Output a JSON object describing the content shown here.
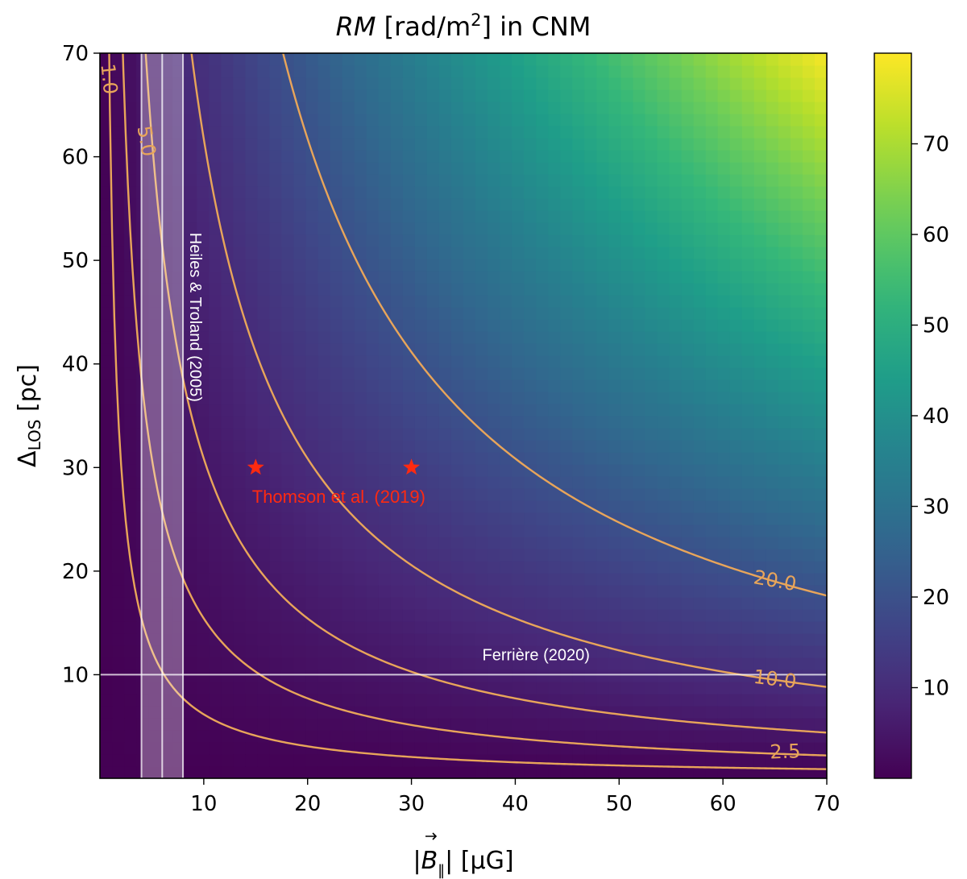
{
  "chart_data": {
    "type": "heatmap",
    "title_parts": {
      "rm": "RM",
      "unit_pre": " [rad/m",
      "sup": "2",
      "unit_post": "] in CNM"
    },
    "xlabel_parts": {
      "b": "B",
      "sub": "‖",
      "unit": "| [μG]"
    },
    "ylabel_parts": {
      "delta": "Δ",
      "sub": "LOS",
      "unit": " [pc]"
    },
    "xlim": [
      0,
      70
    ],
    "ylim": [
      0,
      70
    ],
    "xticks": [
      10,
      20,
      30,
      40,
      50,
      60,
      70
    ],
    "yticks": [
      10,
      20,
      30,
      40,
      50,
      60,
      70
    ],
    "relation": "RM = 0.0162 * B * Delta",
    "colormap": "viridis",
    "colorbar": {
      "vmin": 0,
      "vmax": 80,
      "ticks": [
        10,
        20,
        30,
        40,
        50,
        60,
        70
      ]
    },
    "contour_color": "#e8a55a",
    "contour_levels": [
      1.0,
      2.5,
      5.0,
      10.0,
      20.0
    ],
    "contour_labels": [
      {
        "text": "2.5",
        "level": 2.5,
        "x": 66,
        "y": 2.5,
        "rotate": -2
      },
      {
        "text": "10.0",
        "level": 10.0,
        "x": 65,
        "y": 9.5,
        "rotate": 7
      },
      {
        "text": "20.0",
        "level": 20.0,
        "x": 65,
        "y": 19.0,
        "rotate": 10
      },
      {
        "text": "5.0",
        "level": 5.0,
        "x": 4.4,
        "y": 61.5,
        "rotate": 80
      },
      {
        "text": "1.0",
        "level": 1.0,
        "x": 0.8,
        "y": 67.5,
        "rotate": 84
      }
    ],
    "b_range": {
      "label": "Heiles & Troland (2005)",
      "x_min": 4,
      "x_max": 8,
      "x_center": 6,
      "label_x": 8.7,
      "label_y": 44.5
    },
    "delta_line": {
      "label": "Ferrière (2020)",
      "y": 10,
      "label_x": 42,
      "label_y": 11.4
    },
    "thomson": {
      "label": "Thomson et al. (2019)",
      "points": [
        {
          "x": 15,
          "y": 30
        },
        {
          "x": 30,
          "y": 30
        }
      ],
      "label_x": 23,
      "label_y": 26.6,
      "color": "#ff2a10"
    }
  }
}
